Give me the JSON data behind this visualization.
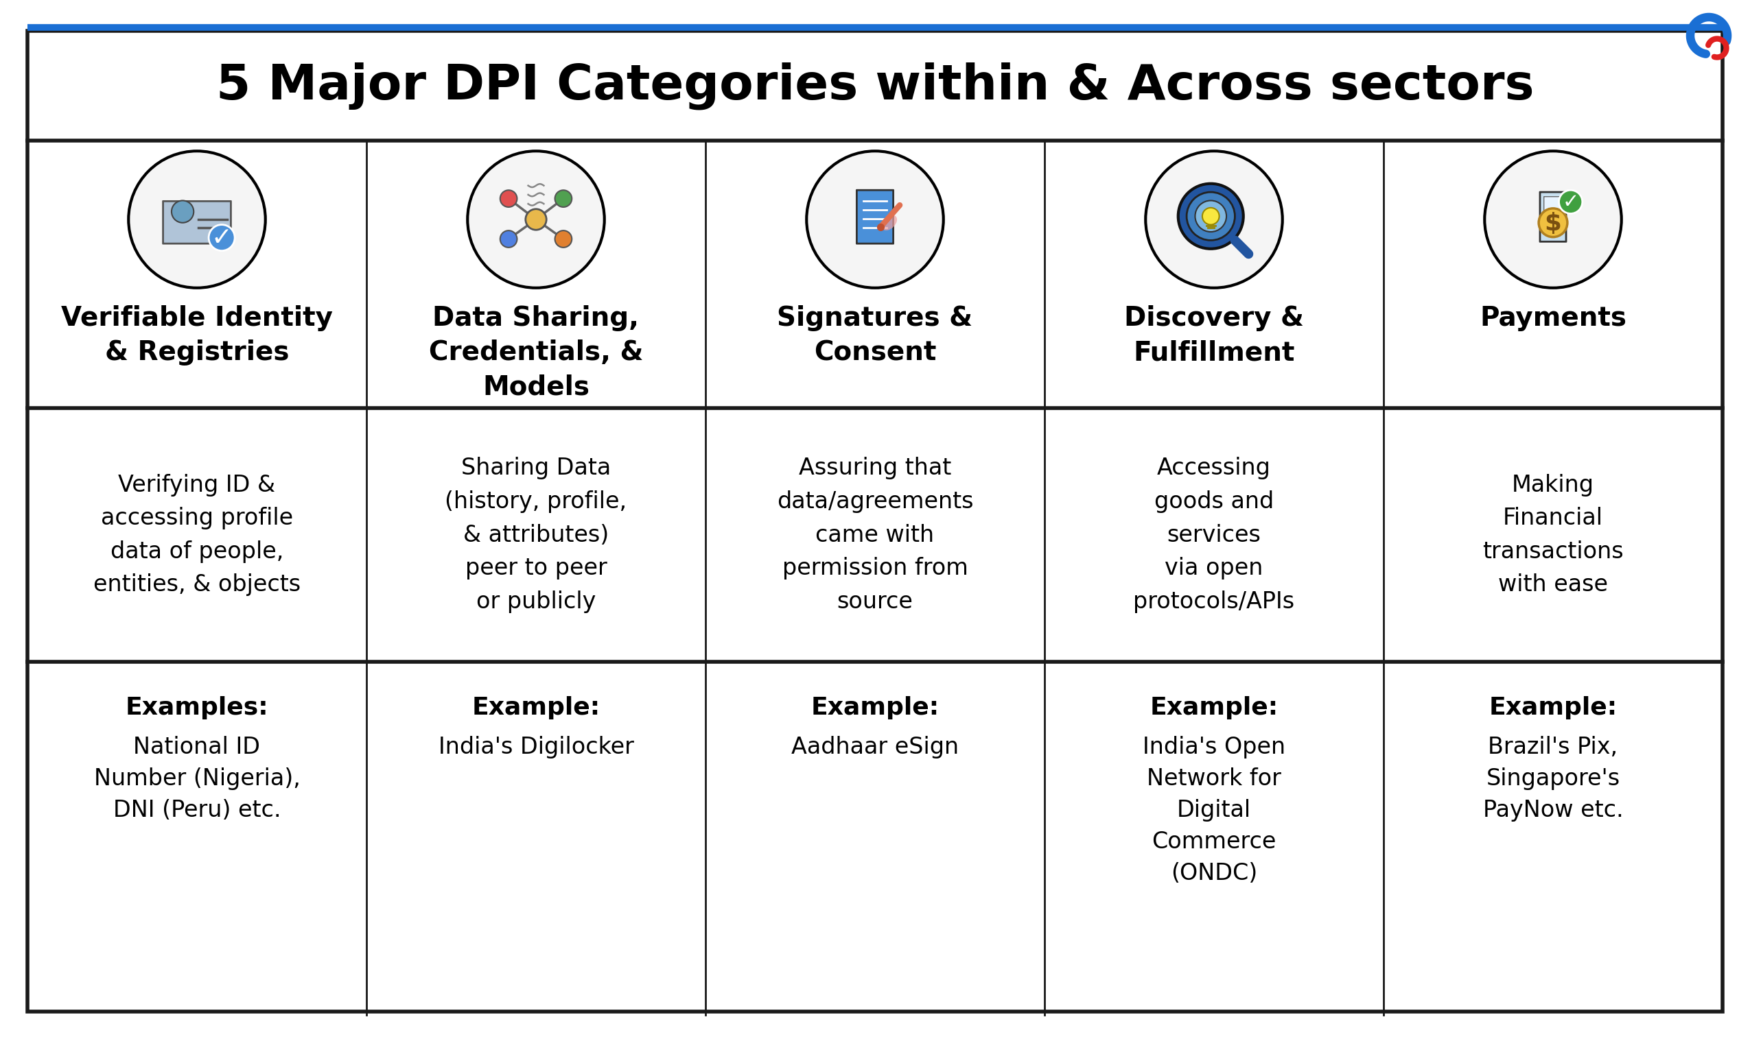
{
  "title": "5 Major DPI Categories within & Across sectors",
  "title_fontsize": 52,
  "background_color": "#ffffff",
  "border_color": "#1a1a1a",
  "top_line_color": "#1a6fd4",
  "columns": [
    {
      "header": "Verifiable Identity\n& Registries",
      "description": "Verifying ID &\naccessing profile\ndata of people,\nentities, & objects",
      "example_label": "Examples:",
      "example_text": "National ID\nNumber (Nigeria),\nDNI (Peru) etc."
    },
    {
      "header": "Data Sharing,\nCredentials, &\nModels",
      "description": "Sharing Data\n(history, profile,\n& attributes)\npeer to peer\nor publicly",
      "example_label": "Example:",
      "example_text": "India's Digilocker"
    },
    {
      "header": "Signatures &\nConsent",
      "description": "Assuring that\ndata/agreements\ncame with\npermission from\nsource",
      "example_label": "Example:",
      "example_text": "Aadhaar eSign"
    },
    {
      "header": "Discovery &\nFulfillment",
      "description": "Accessing\ngoods and\nservices\nvia open\nprotocols/APIs",
      "example_label": "Example:",
      "example_text": "India's Open\nNetwork for\nDigital\nCommerce\n(ONDC)"
    },
    {
      "header": "Payments",
      "description": "Making\nFinancial\ntransactions\nwith ease",
      "example_label": "Example:",
      "example_text": "Brazil's Pix,\nSingapore's\nPayNow etc."
    }
  ],
  "header_fontsize": 28,
  "desc_fontsize": 24,
  "example_label_fontsize": 26,
  "example_text_fontsize": 24,
  "col_border_color": "#1a1a1a",
  "row_divider_color": "#1a1a1a"
}
